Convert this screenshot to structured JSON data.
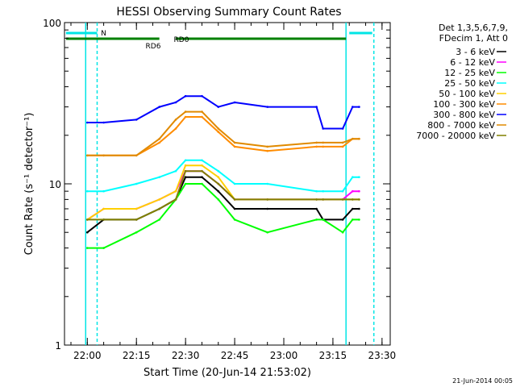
{
  "chart_data": {
    "type": "line",
    "title": "HESSI Observing Summary Count Rates",
    "xlabel": "Start Time (20-Jun-14 21:53:02)",
    "ylabel": "Count Rate (s⁻¹ detector⁻¹)",
    "x_scale": "time",
    "y_scale": "log",
    "xlim": [
      "21:53:02",
      "23:32:30"
    ],
    "ylim": [
      1,
      100
    ],
    "x_ticks": [
      "22:00",
      "22:15",
      "22:30",
      "22:45",
      "23:00",
      "23:15",
      "23:30"
    ],
    "y_ticks": [
      1,
      10,
      100
    ],
    "legend_header": [
      "Det 1,3,5,6,7,9,",
      "FDecim 1, Att 0"
    ],
    "legend_position": "right",
    "footer": "21-Jun-2014 00:05",
    "annotations": [
      {
        "label": "N",
        "t_start": "21:53:30",
        "t_end": "22:03:00",
        "color": "#00e5e5",
        "style": "solid"
      },
      {
        "label": "",
        "t_start": "23:20:00",
        "t_end": "23:27:00",
        "color": "#00e5e5",
        "style": "solid"
      },
      {
        "label": "RD6",
        "t_start": "21:53:30",
        "t_end": "22:22:00",
        "color": "#008000",
        "style": "bar"
      },
      {
        "label": "RD0",
        "t_start": "22:27:00",
        "t_end": "23:19:00",
        "color": "#008000",
        "style": "bar"
      }
    ],
    "vlines": [
      {
        "t": "21:59:30",
        "color": "#00e5e5",
        "style": "solid"
      },
      {
        "t": "22:03:00",
        "color": "#00e5e5",
        "style": "dashed"
      },
      {
        "t": "23:19:00",
        "color": "#00e5e5",
        "style": "solid"
      },
      {
        "t": "23:27:30",
        "color": "#00e5e5",
        "style": "dashed"
      }
    ],
    "series": [
      {
        "name": "3 - 6 keV",
        "color": "#000000",
        "t": [
          "22:00",
          "22:05",
          "22:15",
          "22:22",
          "22:27",
          "22:30",
          "22:35",
          "22:40",
          "22:45",
          "22:55",
          "23:10",
          "23:12",
          "23:18",
          "23:21",
          "23:23"
        ],
        "y": [
          5,
          6,
          6,
          7,
          8,
          11,
          11,
          9,
          7,
          7,
          7,
          6,
          6,
          7,
          7
        ]
      },
      {
        "name": "6 - 12 keV",
        "color": "#ff00ff",
        "t": [
          "22:00",
          "22:05",
          "22:15",
          "22:22",
          "22:27",
          "22:30",
          "22:35",
          "22:40",
          "22:45",
          "22:55",
          "23:10",
          "23:12",
          "23:18",
          "23:21",
          "23:23"
        ],
        "y": [
          6,
          7,
          7,
          8,
          9,
          12,
          12,
          10,
          8,
          8,
          8,
          8,
          8,
          9,
          9
        ]
      },
      {
        "name": "12 - 25 keV",
        "color": "#00ff00",
        "t": [
          "22:00",
          "22:05",
          "22:15",
          "22:22",
          "22:27",
          "22:30",
          "22:35",
          "22:40",
          "22:45",
          "22:55",
          "23:10",
          "23:12",
          "23:18",
          "23:21",
          "23:23"
        ],
        "y": [
          4,
          4,
          5,
          6,
          8,
          10,
          10,
          8,
          6,
          5,
          6,
          6,
          5,
          6,
          6
        ]
      },
      {
        "name": "25 - 50 keV",
        "color": "#00ffff",
        "t": [
          "22:00",
          "22:05",
          "22:15",
          "22:22",
          "22:27",
          "22:30",
          "22:35",
          "22:40",
          "22:45",
          "22:55",
          "23:10",
          "23:12",
          "23:18",
          "23:21",
          "23:23"
        ],
        "y": [
          9,
          9,
          10,
          11,
          12,
          14,
          14,
          12,
          10,
          10,
          9,
          9,
          9,
          11,
          11
        ]
      },
      {
        "name": "50 - 100 keV",
        "color": "#ffd000",
        "t": [
          "22:00",
          "22:05",
          "22:15",
          "22:22",
          "22:27",
          "22:30",
          "22:35",
          "22:40",
          "22:45",
          "22:55",
          "23:10",
          "23:12",
          "23:18",
          "23:21",
          "23:23"
        ],
        "y": [
          6,
          7,
          7,
          8,
          9,
          13,
          13,
          11,
          8,
          8,
          8,
          8,
          8,
          8,
          8
        ]
      },
      {
        "name": "100 - 300 keV",
        "color": "#ff8c00",
        "t": [
          "22:00",
          "22:05",
          "22:15",
          "22:22",
          "22:27",
          "22:30",
          "22:35",
          "22:40",
          "22:45",
          "22:55",
          "23:10",
          "23:12",
          "23:18",
          "23:21",
          "23:23"
        ],
        "y": [
          15,
          15,
          15,
          18,
          22,
          26,
          26,
          21,
          17,
          16,
          17,
          17,
          17,
          19,
          19
        ]
      },
      {
        "name": "300 - 800 keV",
        "color": "#0000ff",
        "t": [
          "22:00",
          "22:05",
          "22:15",
          "22:22",
          "22:27",
          "22:30",
          "22:35",
          "22:40",
          "22:45",
          "22:55",
          "23:10",
          "23:12",
          "23:18",
          "23:21",
          "23:23"
        ],
        "y": [
          24,
          24,
          25,
          30,
          32,
          35,
          35,
          30,
          32,
          30,
          30,
          22,
          22,
          30,
          30
        ]
      },
      {
        "name": "800 - 7000 keV",
        "color": "#e08a00",
        "t": [
          "22:00",
          "22:05",
          "22:15",
          "22:22",
          "22:27",
          "22:30",
          "22:35",
          "22:40",
          "22:45",
          "22:55",
          "23:10",
          "23:12",
          "23:18",
          "23:21",
          "23:23"
        ],
        "y": [
          15,
          15,
          15,
          19,
          25,
          28,
          28,
          22,
          18,
          17,
          18,
          18,
          18,
          19,
          19
        ]
      },
      {
        "name": "7000 - 20000 keV",
        "color": "#808000",
        "t": [
          "22:00",
          "22:05",
          "22:15",
          "22:22",
          "22:27",
          "22:30",
          "22:35",
          "22:40",
          "22:45",
          "22:55",
          "23:10",
          "23:12",
          "23:18",
          "23:21",
          "23:23"
        ],
        "y": [
          6,
          6,
          6,
          7,
          8,
          12,
          12,
          10,
          8,
          8,
          8,
          8,
          8,
          8,
          8
        ]
      }
    ]
  }
}
